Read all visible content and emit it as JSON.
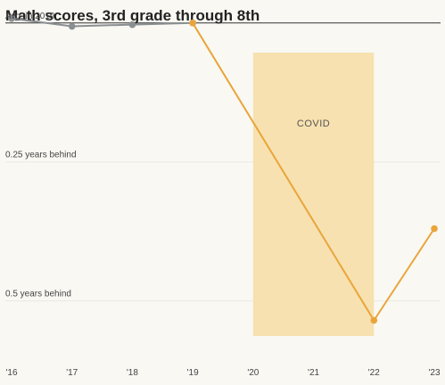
{
  "chart_data": {
    "type": "line",
    "title": "Math scores, 3rd grade through 8th",
    "x_ticks": [
      "'16",
      "'17",
      "'18",
      "'19",
      "'20",
      "'21",
      "'22",
      "'23"
    ],
    "x_values": [
      2016,
      2017,
      2018,
      2019,
      2020,
      2021,
      2022,
      2023
    ],
    "y_reference_labels": [
      {
        "value": 0,
        "label": "Avg. in 2019"
      },
      {
        "value": -0.25,
        "label": "0.25 years behind"
      },
      {
        "value": -0.5,
        "label": "0.5 years behind"
      }
    ],
    "ylim": [
      -0.6,
      0.02
    ],
    "xlim": [
      2016,
      2023
    ],
    "series": [
      {
        "key": "pre",
        "color": "#8a8f92",
        "points": [
          {
            "x": 2016,
            "y": 0.008
          },
          {
            "x": 2017,
            "y": -0.006
          },
          {
            "x": 2018,
            "y": -0.003
          },
          {
            "x": 2019,
            "y": 0.0
          }
        ]
      },
      {
        "key": "post",
        "color": "#e9a53a",
        "points": [
          {
            "x": 2019,
            "y": 0.0
          },
          {
            "x": 2022,
            "y": -0.535
          },
          {
            "x": 2023,
            "y": -0.37
          }
        ]
      }
    ],
    "shaded_region": {
      "x_start": 2020,
      "x_end": 2022,
      "label": "COVID",
      "color": "#f7e1b0"
    },
    "grid": true,
    "baseline_color": "#333333"
  }
}
